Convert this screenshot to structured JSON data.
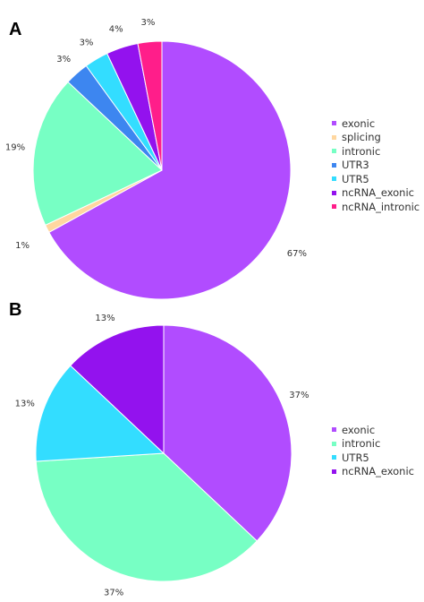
{
  "chart_data": [
    {
      "type": "pie",
      "panel_label": "A",
      "title": "",
      "categories": [
        "exonic",
        "splicing",
        "intronic",
        "UTR3",
        "UTR5",
        "ncRNA_exonic",
        "ncRNA_intronic"
      ],
      "values": [
        67,
        1,
        19,
        3,
        3,
        4,
        3
      ],
      "labels": [
        "67%",
        "1%",
        "19%",
        "3%",
        "3%",
        "4%",
        "3%"
      ],
      "colors": [
        "#b14cff",
        "#ffd7a0",
        "#77ffc4",
        "#3d86f0",
        "#33ddff",
        "#9312ee",
        "#ff1e8a"
      ],
      "legend_position": "right"
    },
    {
      "type": "pie",
      "panel_label": "B",
      "title": "",
      "categories": [
        "exonic",
        "intronic",
        "UTR5",
        "ncRNA_exonic"
      ],
      "values": [
        37,
        37,
        13,
        13
      ],
      "labels": [
        "37%",
        "37%",
        "13%",
        "13%"
      ],
      "colors": [
        "#b14cff",
        "#77ffc4",
        "#33ddff",
        "#9312ee"
      ],
      "legend_position": "right"
    }
  ]
}
